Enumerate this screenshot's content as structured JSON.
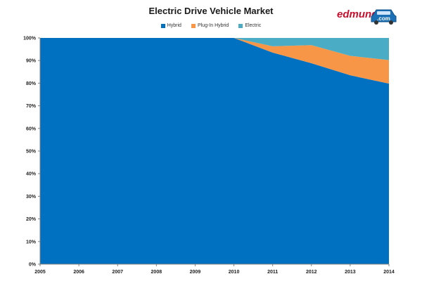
{
  "chart_data": {
    "type": "area",
    "stacked": true,
    "normalized": true,
    "title": "Electric Drive Vehicle Market",
    "x": [
      "2005",
      "2006",
      "2007",
      "2008",
      "2009",
      "2010",
      "2011",
      "2012",
      "2013",
      "2014"
    ],
    "series": [
      {
        "name": "Hybrid",
        "color": "#0070c0",
        "values": [
          100,
          100,
          100,
          100,
          100,
          100,
          93.5,
          88.8,
          83.5,
          79.8
        ]
      },
      {
        "name": "Plug-In Hybrid",
        "color": "#f79646",
        "values": [
          0,
          0,
          0,
          0,
          0,
          0,
          2.8,
          8.0,
          8.6,
          10.4
        ]
      },
      {
        "name": "Electric",
        "color": "#4bacc6",
        "values": [
          0,
          0,
          0,
          0,
          0,
          0,
          3.7,
          3.2,
          7.9,
          9.8
        ]
      }
    ],
    "ylim": [
      0,
      100
    ],
    "yticks": [
      "0%",
      "10%",
      "20%",
      "30%",
      "40%",
      "50%",
      "60%",
      "70%",
      "80%",
      "90%",
      "100%"
    ],
    "xlabel": "",
    "ylabel": "",
    "legend_position": "top-center",
    "grid": false
  },
  "logo": {
    "text": "edmunds",
    "badge_text": ".com",
    "colors": {
      "red": "#c8102e",
      "blue": "#1a6fb5"
    }
  }
}
